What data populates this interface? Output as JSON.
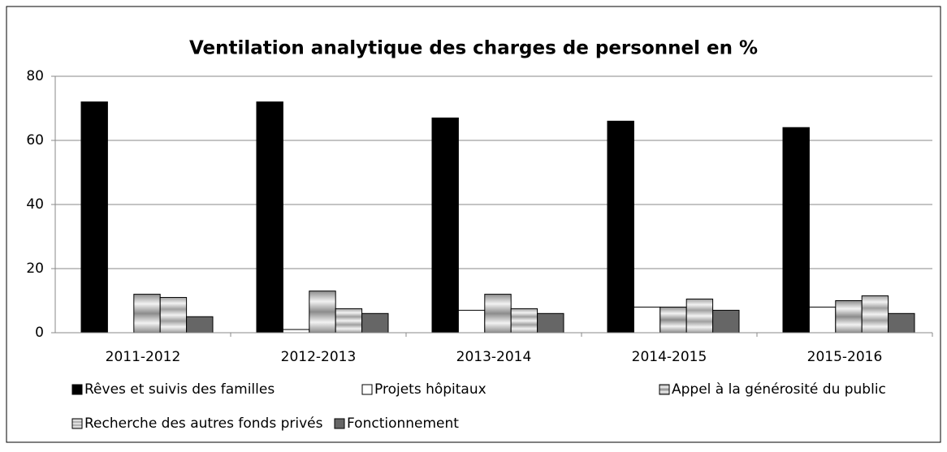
{
  "chart_data": {
    "type": "bar",
    "title": "Ventilation analytique des charges de personnel en %",
    "categories": [
      "2011-2012",
      "2012-2013",
      "2013-2014",
      "2014-2015",
      "2015-2016"
    ],
    "series": [
      {
        "name": "Rêves et suivis des familles",
        "color": "#000000",
        "values": [
          72,
          72,
          67,
          66,
          64
        ]
      },
      {
        "name": "Projets hôpitaux",
        "color": "#ffffff",
        "values": [
          0,
          1,
          7,
          8,
          8
        ]
      },
      {
        "name": "Appel à la générosité du public",
        "color": "#8c8c8c",
        "values": [
          12,
          13,
          12,
          8,
          10
        ]
      },
      {
        "name": "Recherche des autres fonds privés",
        "color": "#a0a0a0",
        "values": [
          11,
          7.5,
          7.5,
          10.5,
          11.5
        ]
      },
      {
        "name": "Fonctionnement",
        "color": "#666666",
        "values": [
          5,
          6,
          6,
          7,
          6
        ]
      }
    ],
    "ylim": [
      0,
      80
    ],
    "yticks": [
      0,
      20,
      40,
      60,
      80
    ],
    "grid": true,
    "legend": "bottom"
  }
}
